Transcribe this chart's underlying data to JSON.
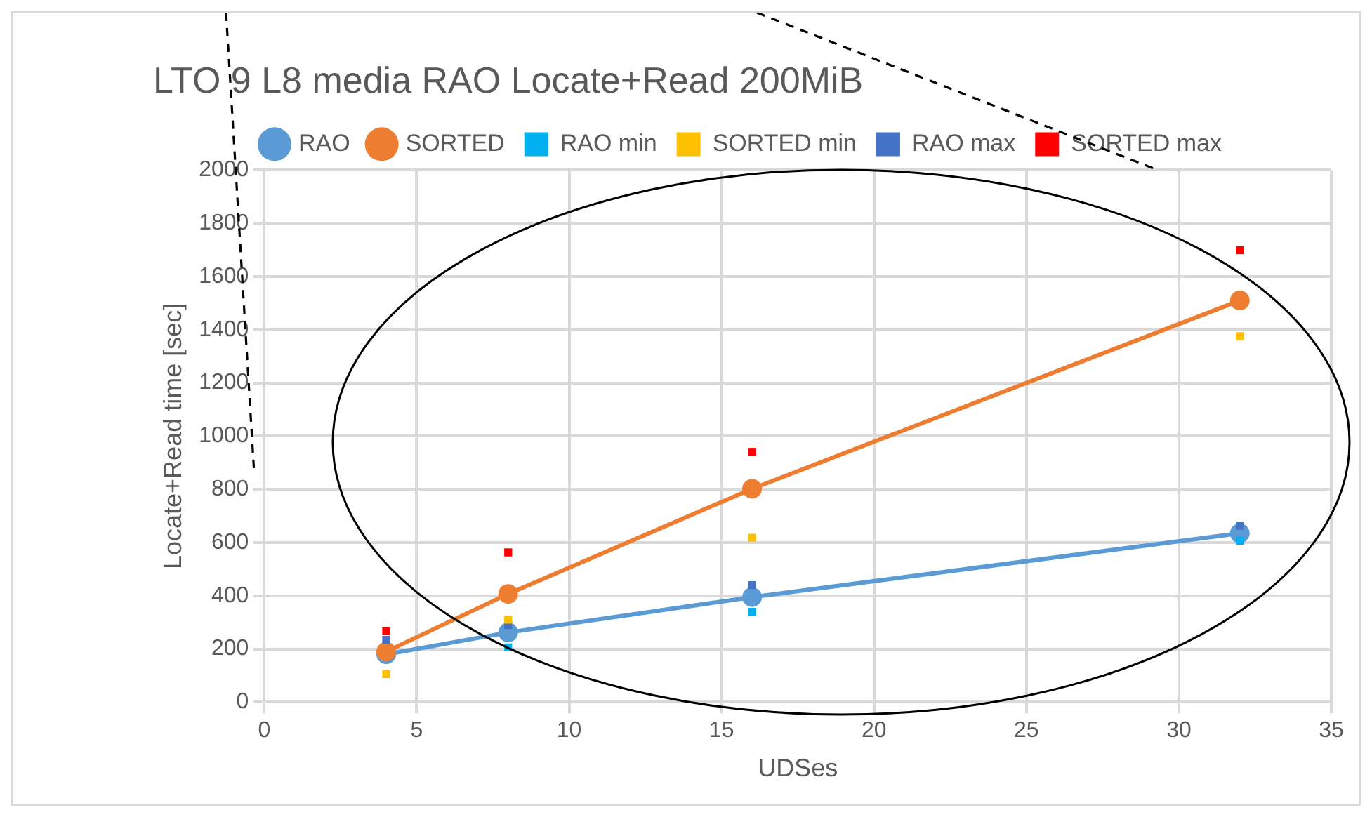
{
  "chart_data": {
    "type": "line",
    "title": "LTO 9 L8 media RAO Locate+Read 200MiB",
    "xlabel": "UDSes",
    "ylabel": "Locate+Read time [sec]",
    "x": [
      4,
      8,
      16,
      32
    ],
    "series": [
      {
        "name": "RAO",
        "color": "#5b9bd5",
        "marker": "circle",
        "values": [
          180,
          262,
          395,
          635
        ]
      },
      {
        "name": "SORTED",
        "color": "#ed7d31",
        "marker": "circle",
        "values": [
          190,
          407,
          802,
          1510
        ]
      },
      {
        "name": "RAO min",
        "type": "scatter",
        "color": "#00b0f0",
        "marker": "square",
        "values": [
          null,
          206,
          340,
          607
        ]
      },
      {
        "name": "SORTED min",
        "type": "scatter",
        "color": "#ffc000",
        "marker": "square",
        "values": [
          106,
          310,
          618,
          1376
        ]
      },
      {
        "name": "RAO max",
        "type": "scatter",
        "color": "#4472c4",
        "marker": "square",
        "values": [
          234,
          290,
          440,
          663
        ]
      },
      {
        "name": "SORTED max",
        "type": "scatter",
        "color": "#ff0000",
        "marker": "square",
        "values": [
          267,
          563,
          941,
          1699
        ]
      }
    ],
    "xlim": [
      0,
      35
    ],
    "xticks": [
      0,
      5,
      10,
      15,
      20,
      25,
      30,
      35
    ],
    "ylim": [
      0,
      2000
    ],
    "yticks": [
      0,
      200,
      400,
      600,
      800,
      1000,
      1200,
      1400,
      1600,
      1800,
      2000
    ],
    "grid": true,
    "legend": "top"
  }
}
